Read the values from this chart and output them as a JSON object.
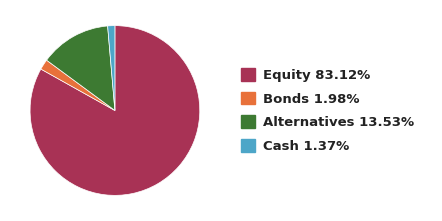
{
  "labels": [
    "Equity 83.12%",
    "Bonds 1.98%",
    "Alternatives 13.53%",
    "Cash 1.37%"
  ],
  "values": [
    83.12,
    1.98,
    13.53,
    1.37
  ],
  "colors": [
    "#a83255",
    "#e8713a",
    "#3d7a32",
    "#4da6c8"
  ],
  "background_color": "#ffffff",
  "startangle": 90,
  "legend_fontsize": 9.5,
  "legend_fontweight": "bold"
}
